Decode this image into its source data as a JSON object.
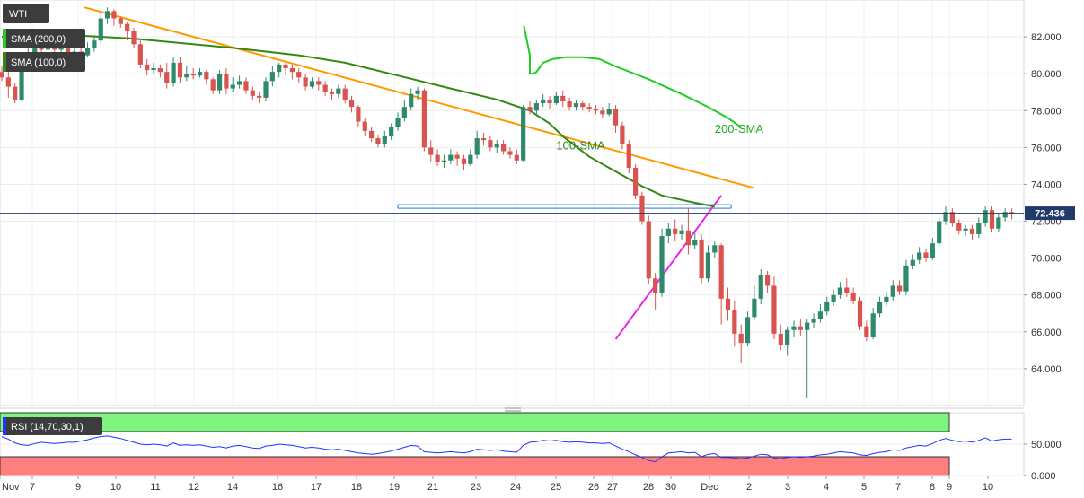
{
  "chart_data": {
    "type": "candlestick",
    "symbol": "WTI",
    "indicators": [
      {
        "label": "SMA (200,0)",
        "color": "#22cc22"
      },
      {
        "label": "SMA (100,0)",
        "color": "#338811"
      }
    ],
    "last_price": "72.436",
    "price_axis": {
      "ticks": [
        "82.000",
        "80.000",
        "78.000",
        "76.000",
        "74.000",
        "72.000",
        "70.000",
        "68.000",
        "66.000",
        "64.000"
      ],
      "ylim": [
        62.0,
        84.0
      ]
    },
    "x_labels": [
      "Nov",
      "7",
      "9",
      "10",
      "11",
      "12",
      "14",
      "16",
      "17",
      "18",
      "19",
      "21",
      "23",
      "24",
      "25",
      "26",
      "27",
      "28",
      "30",
      "Dec",
      "2",
      "3",
      "4",
      "5",
      "7",
      "8",
      "9",
      "10"
    ],
    "candles": [
      [
        80.1,
        79.8,
        80.4,
        79.6
      ],
      [
        79.8,
        79.3,
        80.1,
        78.7
      ],
      [
        79.3,
        78.6,
        79.5,
        78.4
      ],
      [
        78.6,
        80.5,
        80.7,
        78.5
      ],
      [
        80.5,
        81.1,
        81.6,
        80.3
      ],
      [
        81.1,
        81.6,
        81.9,
        80.9
      ],
      [
        81.6,
        81.3,
        82.0,
        81.0
      ],
      [
        81.3,
        81.5,
        81.9,
        81.0
      ],
      [
        81.5,
        81.3,
        81.7,
        80.9
      ],
      [
        81.3,
        81.7,
        81.9,
        81.1
      ],
      [
        81.7,
        81.0,
        81.9,
        80.7
      ],
      [
        81.0,
        81.2,
        81.5,
        80.8
      ],
      [
        81.2,
        81.0,
        81.4,
        80.8
      ],
      [
        81.0,
        81.4,
        81.7,
        80.9
      ],
      [
        81.4,
        81.8,
        82.1,
        81.2
      ],
      [
        81.8,
        83.0,
        83.3,
        81.6
      ],
      [
        83.0,
        83.4,
        83.6,
        82.7
      ],
      [
        83.4,
        83.0,
        83.5,
        82.6
      ],
      [
        83.0,
        82.7,
        83.1,
        82.5
      ],
      [
        82.7,
        82.3,
        82.8,
        81.8
      ],
      [
        82.3,
        81.6,
        82.5,
        81.4
      ],
      [
        81.6,
        80.5,
        81.8,
        80.3
      ],
      [
        80.5,
        80.2,
        80.8,
        79.9
      ],
      [
        80.2,
        80.3,
        80.6,
        80.0
      ],
      [
        80.3,
        80.1,
        80.5,
        79.8
      ],
      [
        80.1,
        79.5,
        80.6,
        79.2
      ],
      [
        79.5,
        80.6,
        80.9,
        79.3
      ],
      [
        80.6,
        79.8,
        80.9,
        79.5
      ],
      [
        79.8,
        80.0,
        80.4,
        79.6
      ],
      [
        80.0,
        79.9,
        80.3,
        79.7
      ],
      [
        79.9,
        80.1,
        80.3,
        79.8
      ],
      [
        80.1,
        79.7,
        80.2,
        79.4
      ],
      [
        79.7,
        79.1,
        79.8,
        78.9
      ],
      [
        79.1,
        80.0,
        80.2,
        78.9
      ],
      [
        80.0,
        79.2,
        80.3,
        78.9
      ],
      [
        79.2,
        79.4,
        79.8,
        79.0
      ],
      [
        79.4,
        79.6,
        79.9,
        79.2
      ],
      [
        79.6,
        79.1,
        79.8,
        78.9
      ],
      [
        79.1,
        78.8,
        79.3,
        78.6
      ],
      [
        78.8,
        78.7,
        79.0,
        78.4
      ],
      [
        78.7,
        79.6,
        79.8,
        78.5
      ],
      [
        79.6,
        80.1,
        80.4,
        79.3
      ],
      [
        80.1,
        80.5,
        80.6,
        79.8
      ],
      [
        80.5,
        80.3,
        80.6,
        79.9
      ],
      [
        80.3,
        80.1,
        80.5,
        79.7
      ],
      [
        80.1,
        79.8,
        80.3,
        79.5
      ],
      [
        79.8,
        79.3,
        80.0,
        79.1
      ],
      [
        79.3,
        79.6,
        79.8,
        79.2
      ],
      [
        79.6,
        79.4,
        79.8,
        79.1
      ],
      [
        79.4,
        79.0,
        79.6,
        78.8
      ],
      [
        79.0,
        78.9,
        79.2,
        78.6
      ],
      [
        78.9,
        79.2,
        79.4,
        78.7
      ],
      [
        79.2,
        78.6,
        79.4,
        78.4
      ],
      [
        78.6,
        78.2,
        78.8,
        77.9
      ],
      [
        78.2,
        77.4,
        78.3,
        77.1
      ],
      [
        77.4,
        76.9,
        77.6,
        76.6
      ],
      [
        76.9,
        76.5,
        77.1,
        76.3
      ],
      [
        76.5,
        76.2,
        76.7,
        76.0
      ],
      [
        76.2,
        76.6,
        76.9,
        76.0
      ],
      [
        76.6,
        77.1,
        77.3,
        76.4
      ],
      [
        77.1,
        77.6,
        77.9,
        76.9
      ],
      [
        77.6,
        78.2,
        78.6,
        77.4
      ],
      [
        78.2,
        78.9,
        79.2,
        78.0
      ],
      [
        78.9,
        79.1,
        79.3,
        78.6
      ],
      [
        79.1,
        76.0,
        79.2,
        75.8
      ],
      [
        76.0,
        75.6,
        76.4,
        75.2
      ],
      [
        75.6,
        75.2,
        75.9,
        75.0
      ],
      [
        75.2,
        75.3,
        75.6,
        74.9
      ],
      [
        75.3,
        75.6,
        75.9,
        75.1
      ],
      [
        75.6,
        75.4,
        75.8,
        75.0
      ],
      [
        75.4,
        75.1,
        75.6,
        74.8
      ],
      [
        75.1,
        75.6,
        75.9,
        75.0
      ],
      [
        75.6,
        76.5,
        76.9,
        75.4
      ],
      [
        76.5,
        76.4,
        76.8,
        76.1
      ],
      [
        76.4,
        76.0,
        76.6,
        75.8
      ],
      [
        76.0,
        76.2,
        76.4,
        75.7
      ],
      [
        76.2,
        75.8,
        76.4,
        75.6
      ],
      [
        75.8,
        75.6,
        76.0,
        75.4
      ],
      [
        75.6,
        75.3,
        75.9,
        75.1
      ],
      [
        75.3,
        78.2,
        78.3,
        75.2
      ],
      [
        78.2,
        78.0,
        78.5,
        77.8
      ],
      [
        78.0,
        78.4,
        78.6,
        77.7
      ],
      [
        78.4,
        78.6,
        78.9,
        78.2
      ],
      [
        78.6,
        78.4,
        78.8,
        78.1
      ],
      [
        78.4,
        78.8,
        79.0,
        78.3
      ],
      [
        78.8,
        78.5,
        79.1,
        78.2
      ],
      [
        78.5,
        78.2,
        78.7,
        78.0
      ],
      [
        78.2,
        78.4,
        78.6,
        78.0
      ],
      [
        78.4,
        78.2,
        78.5,
        78.0
      ],
      [
        78.2,
        78.1,
        78.4,
        77.9
      ],
      [
        78.1,
        78.0,
        78.3,
        77.8
      ],
      [
        78.0,
        77.8,
        78.2,
        77.6
      ],
      [
        77.8,
        78.1,
        78.4,
        77.7
      ],
      [
        78.1,
        77.2,
        78.3,
        76.8
      ],
      [
        77.2,
        76.2,
        77.4,
        75.9
      ],
      [
        76.2,
        74.9,
        76.4,
        74.6
      ],
      [
        74.9,
        73.4,
        75.1,
        73.2
      ],
      [
        73.4,
        72.0,
        73.6,
        71.8
      ],
      [
        72.0,
        68.9,
        72.3,
        68.6
      ],
      [
        68.9,
        68.1,
        69.2,
        67.2
      ],
      [
        68.1,
        71.2,
        71.6,
        67.9
      ],
      [
        71.2,
        71.6,
        71.9,
        70.8
      ],
      [
        71.6,
        71.3,
        72.1,
        70.9
      ],
      [
        71.3,
        71.5,
        71.8,
        71.0
      ],
      [
        71.5,
        70.7,
        72.7,
        70.2
      ],
      [
        70.7,
        71.0,
        71.4,
        70.5
      ],
      [
        71.0,
        68.9,
        71.3,
        68.6
      ],
      [
        68.9,
        70.3,
        70.7,
        68.7
      ],
      [
        70.3,
        70.7,
        70.9,
        70.0
      ],
      [
        70.7,
        67.8,
        70.8,
        66.4
      ],
      [
        67.8,
        67.2,
        68.4,
        66.6
      ],
      [
        67.2,
        65.9,
        67.7,
        65.2
      ],
      [
        65.9,
        65.4,
        66.4,
        64.3
      ],
      [
        65.4,
        66.8,
        67.1,
        65.2
      ],
      [
        66.8,
        67.8,
        68.5,
        66.6
      ],
      [
        67.8,
        69.1,
        69.4,
        67.5
      ],
      [
        69.1,
        68.5,
        69.3,
        68.1
      ],
      [
        68.5,
        65.9,
        69.0,
        65.6
      ],
      [
        65.9,
        65.3,
        66.4,
        65.0
      ],
      [
        65.3,
        66.1,
        66.3,
        64.7
      ],
      [
        66.1,
        66.3,
        66.6,
        65.7
      ],
      [
        66.3,
        66.1,
        66.7,
        65.8
      ],
      [
        66.1,
        66.5,
        66.7,
        62.4
      ],
      [
        66.5,
        66.7,
        67.0,
        66.2
      ],
      [
        66.7,
        67.1,
        67.5,
        66.5
      ],
      [
        67.1,
        67.6,
        67.9,
        66.9
      ],
      [
        67.6,
        68.0,
        68.3,
        67.4
      ],
      [
        68.0,
        68.4,
        68.7,
        67.8
      ],
      [
        68.4,
        68.1,
        68.9,
        67.9
      ],
      [
        68.1,
        67.7,
        68.4,
        67.5
      ],
      [
        67.7,
        66.3,
        67.9,
        66.1
      ],
      [
        66.3,
        65.7,
        66.6,
        65.5
      ],
      [
        65.7,
        67.0,
        67.3,
        65.6
      ],
      [
        67.0,
        67.6,
        67.9,
        66.8
      ],
      [
        67.6,
        67.9,
        68.2,
        67.4
      ],
      [
        67.9,
        68.5,
        68.8,
        67.7
      ],
      [
        68.5,
        68.2,
        68.8,
        68.0
      ],
      [
        68.2,
        69.6,
        69.9,
        68.0
      ],
      [
        69.6,
        69.9,
        70.2,
        69.4
      ],
      [
        69.9,
        70.3,
        70.6,
        69.7
      ],
      [
        70.3,
        70.0,
        70.5,
        69.8
      ],
      [
        70.0,
        70.8,
        71.1,
        69.9
      ],
      [
        70.8,
        72.0,
        72.2,
        70.6
      ],
      [
        72.0,
        72.5,
        72.8,
        71.8
      ],
      [
        72.5,
        71.9,
        72.7,
        71.7
      ],
      [
        71.9,
        71.5,
        72.1,
        71.3
      ],
      [
        71.5,
        71.6,
        71.8,
        71.2
      ],
      [
        71.6,
        71.3,
        71.8,
        71.0
      ],
      [
        71.3,
        71.9,
        72.2,
        71.1
      ],
      [
        71.9,
        72.6,
        72.8,
        71.7
      ],
      [
        72.6,
        71.6,
        72.8,
        71.4
      ],
      [
        71.6,
        72.2,
        72.4,
        71.4
      ],
      [
        72.2,
        72.5,
        72.7,
        72.0
      ],
      [
        72.5,
        72.4,
        72.7,
        72.1
      ]
    ],
    "sma200": [
      [
        79.1,
        82.6
      ],
      [
        80.0,
        81.0
      ],
      [
        80.0,
        80.0
      ],
      [
        80.5,
        80.0
      ],
      [
        81.0,
        80.1
      ],
      [
        82.0,
        80.6
      ],
      [
        83.5,
        80.8
      ],
      [
        85.5,
        80.9
      ],
      [
        88.0,
        80.9
      ],
      [
        90.5,
        80.8
      ],
      [
        93.0,
        80.4
      ],
      [
        98.0,
        79.7
      ],
      [
        103.0,
        78.9
      ],
      [
        107.0,
        78.2
      ],
      [
        110.0,
        77.6
      ],
      [
        112.0,
        77.1
      ]
    ],
    "sma100": [
      [
        0.0,
        82.0
      ],
      [
        10.0,
        82.1
      ],
      [
        20.0,
        81.9
      ],
      [
        35.0,
        81.4
      ],
      [
        45.0,
        81.0
      ],
      [
        52.0,
        80.6
      ],
      [
        60.0,
        79.9
      ],
      [
        68.0,
        79.2
      ],
      [
        75.0,
        78.6
      ],
      [
        80.0,
        78.0
      ],
      [
        83.0,
        77.3
      ],
      [
        85.0,
        76.6
      ],
      [
        89.0,
        75.5
      ],
      [
        93.0,
        74.7
      ],
      [
        97.0,
        73.9
      ],
      [
        100.0,
        73.4
      ],
      [
        105.0,
        73.0
      ],
      [
        108.0,
        72.8
      ]
    ],
    "trendlines": [
      {
        "kind": "resistance",
        "color": "#ff9900",
        "from": [
          12.5,
          83.6
        ],
        "to": [
          114.0,
          73.8
        ]
      },
      {
        "kind": "horizontal",
        "color": "#4a90e2",
        "from": [
          60.0,
          72.8
        ],
        "to": [
          110.5,
          72.8
        ]
      },
      {
        "kind": "support",
        "color": "#ee22ee",
        "from": [
          93.0,
          65.6
        ],
        "to": [
          109.0,
          73.4
        ]
      }
    ],
    "annotations": [
      {
        "text": "100-SMA",
        "color": "#228822",
        "x": 84.0,
        "y": 75.9
      },
      {
        "text": "200-SMA",
        "color": "#22aa22",
        "x": 108.0,
        "y": 76.8
      }
    ],
    "rsi": {
      "label": "RSI (14,70,30,1)",
      "overbought": 70,
      "oversold": 30,
      "ticks": [
        "50.000",
        "0.000"
      ],
      "ylim": [
        0,
        100
      ],
      "values": [
        62,
        58,
        52,
        49,
        48,
        51,
        53,
        52,
        51,
        52,
        53,
        53,
        55,
        57,
        60,
        62,
        63,
        61,
        59,
        56,
        53,
        50,
        49,
        50,
        49,
        47,
        52,
        48,
        49,
        48,
        49,
        47,
        45,
        46,
        44,
        47,
        48,
        46,
        44,
        43,
        47,
        48,
        50,
        49,
        48,
        46,
        44,
        45,
        44,
        42,
        41,
        42,
        40,
        38,
        36,
        35,
        34,
        35,
        37,
        39,
        42,
        45,
        48,
        47,
        38,
        37,
        36,
        37,
        38,
        37,
        36,
        38,
        42,
        41,
        40,
        41,
        39,
        38,
        37,
        48,
        53,
        54,
        56,
        55,
        56,
        54,
        53,
        54,
        53,
        52,
        52,
        51,
        52,
        47,
        42,
        38,
        33,
        29,
        24,
        22,
        30,
        36,
        37,
        38,
        36,
        37,
        30,
        34,
        35,
        29,
        29,
        28,
        27,
        28,
        31,
        34,
        33,
        28,
        27,
        29,
        30,
        29,
        30,
        31,
        33,
        34,
        36,
        38,
        37,
        36,
        33,
        32,
        35,
        37,
        38,
        41,
        40,
        44,
        46,
        48,
        47,
        51,
        56,
        59,
        56,
        54,
        55,
        53,
        56,
        60,
        55,
        57,
        58,
        58
      ]
    }
  }
}
